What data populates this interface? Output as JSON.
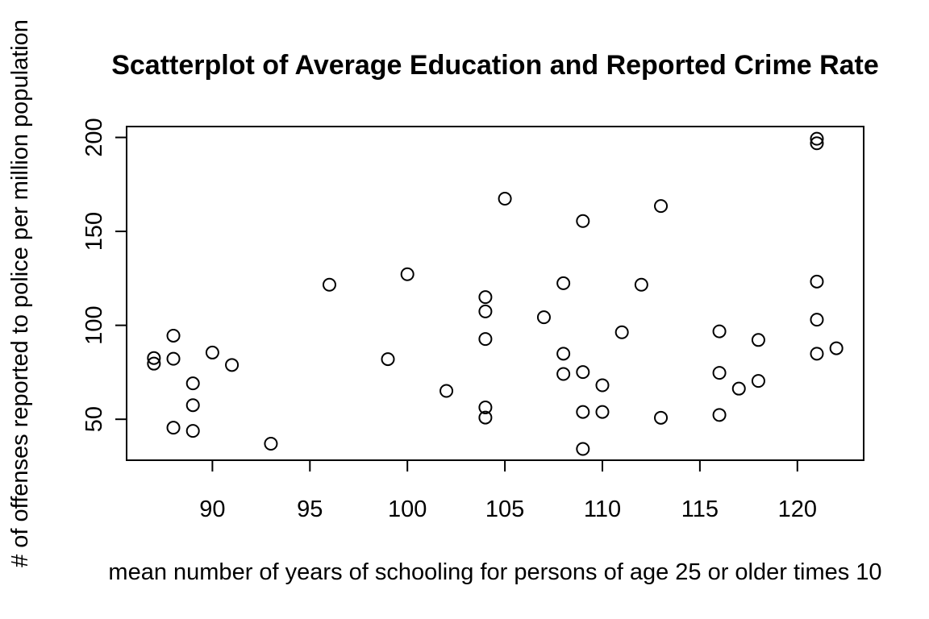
{
  "chart_data": {
    "type": "scatter",
    "title": "Scatterplot of Average Education and Reported Crime Rate",
    "xlabel": "mean number of years of schooling for persons of age 25 or older times 10",
    "ylabel": "# of offenses reported to police per million population",
    "xlim": [
      85.6,
      123.4
    ],
    "ylim": [
      28.2,
      205.8
    ],
    "x_ticks": [
      90,
      95,
      100,
      105,
      110,
      115,
      120
    ],
    "y_ticks": [
      50,
      100,
      150,
      200
    ],
    "grid": false,
    "legend": "none",
    "marker": "open-circle",
    "x": [
      87,
      87,
      88,
      88,
      88,
      89,
      89,
      89,
      90,
      91,
      93,
      96,
      99,
      100,
      102,
      104,
      104,
      104,
      104,
      104,
      105,
      107,
      108,
      108,
      108,
      109,
      109,
      109,
      109,
      110,
      110,
      111,
      112,
      113,
      113,
      116,
      116,
      116,
      117,
      118,
      118,
      121,
      121,
      121,
      121,
      121,
      122
    ],
    "y": [
      82.6,
      79.6,
      94.5,
      82.2,
      45.5,
      69.1,
      57.5,
      43.8,
      85.5,
      78.9,
      37.0,
      121.6,
      82.0,
      127.2,
      65.1,
      115.0,
      107.4,
      92.7,
      56.3,
      50.9,
      167.4,
      104.3,
      122.4,
      84.9,
      74.1,
      155.5,
      75.1,
      53.9,
      34.2,
      68.1,
      53.9,
      96.3,
      121.6,
      163.5,
      50.8,
      96.8,
      74.7,
      52.3,
      66.3,
      92.2,
      70.4,
      199.3,
      196.9,
      123.3,
      103.0,
      84.9,
      87.8
    ]
  }
}
